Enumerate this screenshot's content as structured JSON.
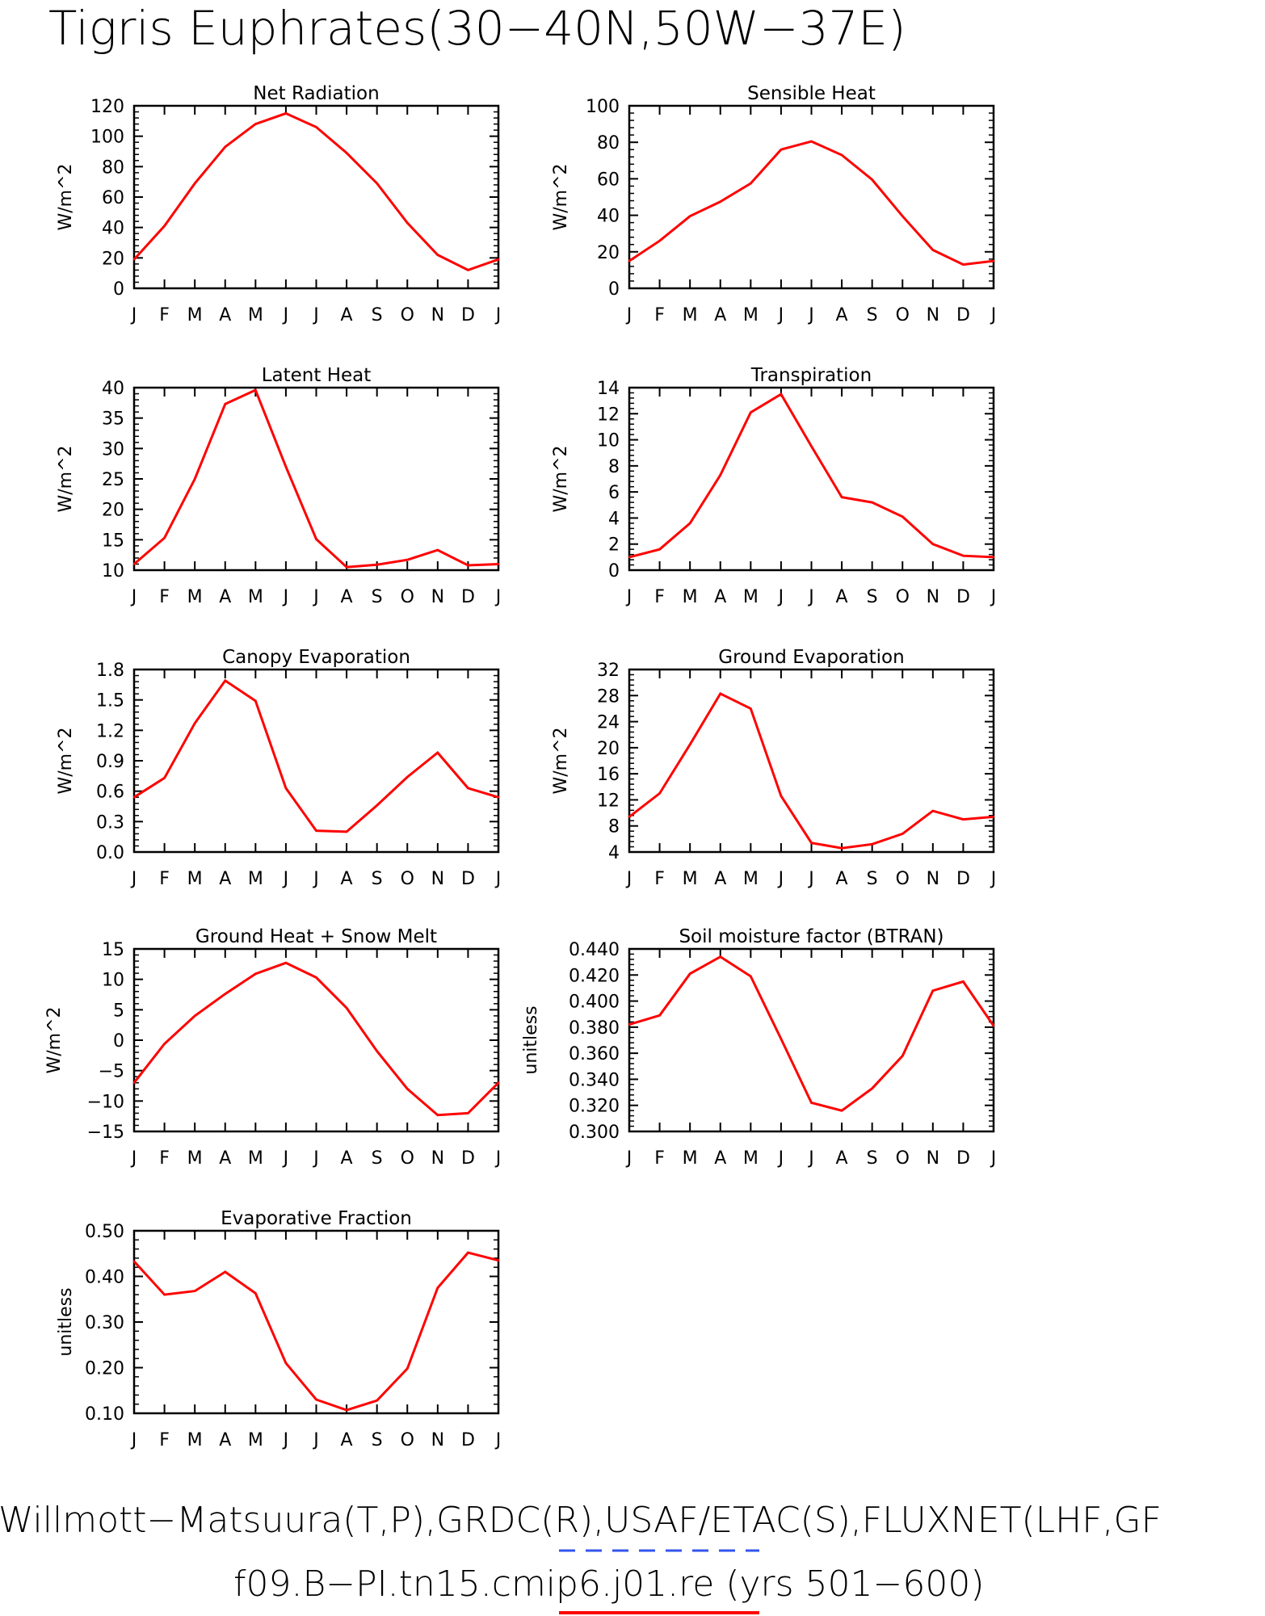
{
  "figure": {
    "title": "Tigris Euphrates(30−40N,50W−37E)",
    "footer_line1": "Willmott−Matsuura(T,P),GRDC(R),USAF/ETAC(S),FLUXNET(LHF,GF",
    "footer_line2": "f09.B−PI.tn15.cmip6.j01.re (yrs 501−600)",
    "line_color": "#ff0000",
    "obs_dash_color": "#3355ee"
  },
  "chart_data": [
    {
      "type": "line",
      "title": "Net Radiation",
      "ylabel": "W/m^2",
      "categories": [
        "J",
        "F",
        "M",
        "A",
        "M",
        "J",
        "J",
        "A",
        "S",
        "O",
        "N",
        "D",
        "J"
      ],
      "ylim": [
        0,
        120
      ],
      "yticks": [
        0,
        20,
        40,
        60,
        80,
        100,
        120
      ],
      "ytick_labels": [
        "0",
        "20",
        "40",
        "60",
        "80",
        "100",
        "120"
      ],
      "values": [
        19,
        41,
        69,
        93,
        108,
        115,
        106,
        89,
        69,
        43,
        22,
        12,
        19
      ]
    },
    {
      "type": "line",
      "title": "Sensible Heat",
      "ylabel": "W/m^2",
      "categories": [
        "J",
        "F",
        "M",
        "A",
        "M",
        "J",
        "J",
        "A",
        "S",
        "O",
        "N",
        "D",
        "J"
      ],
      "ylim": [
        0,
        100
      ],
      "yticks": [
        0,
        20,
        40,
        60,
        80,
        100
      ],
      "ytick_labels": [
        "0",
        "20",
        "40",
        "60",
        "80",
        "100"
      ],
      "values": [
        15,
        26,
        39.5,
        47.5,
        57.5,
        76,
        80.5,
        73,
        59.5,
        39.5,
        21,
        13,
        15
      ]
    },
    {
      "type": "line",
      "title": "Latent Heat",
      "ylabel": "W/m^2",
      "categories": [
        "J",
        "F",
        "M",
        "A",
        "M",
        "J",
        "J",
        "A",
        "S",
        "O",
        "N",
        "D",
        "J"
      ],
      "ylim": [
        10,
        40
      ],
      "yticks": [
        10,
        15,
        20,
        25,
        30,
        35,
        40
      ],
      "ytick_labels": [
        "10",
        "15",
        "20",
        "25",
        "30",
        "35",
        "40"
      ],
      "values": [
        11,
        15.3,
        25,
        37.3,
        39.6,
        27,
        15.1,
        10.5,
        10.9,
        11.7,
        13.3,
        10.8,
        11
      ]
    },
    {
      "type": "line",
      "title": "Transpiration",
      "ylabel": "W/m^2",
      "categories": [
        "J",
        "F",
        "M",
        "A",
        "M",
        "J",
        "J",
        "A",
        "S",
        "O",
        "N",
        "D",
        "J"
      ],
      "ylim": [
        0,
        14
      ],
      "yticks": [
        0,
        2,
        4,
        6,
        8,
        10,
        12,
        14
      ],
      "ytick_labels": [
        "0",
        "2",
        "4",
        "6",
        "8",
        "10",
        "12",
        "14"
      ],
      "values": [
        1,
        1.6,
        3.6,
        7.3,
        12.1,
        13.5,
        9.5,
        5.6,
        5.2,
        4.1,
        2,
        1.1,
        1
      ]
    },
    {
      "type": "line",
      "title": "Canopy Evaporation",
      "ylabel": "W/m^2",
      "categories": [
        "J",
        "F",
        "M",
        "A",
        "M",
        "J",
        "J",
        "A",
        "S",
        "O",
        "N",
        "D",
        "J"
      ],
      "ylim": [
        0,
        1.8
      ],
      "yticks": [
        0,
        0.3,
        0.6,
        0.9,
        1.2,
        1.5,
        1.8
      ],
      "ytick_labels": [
        "0.0",
        "0.3",
        "0.6",
        "0.9",
        "1.2",
        "1.5",
        "1.8"
      ],
      "values": [
        0.54,
        0.73,
        1.27,
        1.69,
        1.49,
        0.63,
        0.21,
        0.2,
        0.46,
        0.74,
        0.98,
        0.63,
        0.54
      ]
    },
    {
      "type": "line",
      "title": "Ground Evaporation",
      "ylabel": "W/m^2",
      "categories": [
        "J",
        "F",
        "M",
        "A",
        "M",
        "J",
        "J",
        "A",
        "S",
        "O",
        "N",
        "D",
        "J"
      ],
      "ylim": [
        4,
        32
      ],
      "yticks": [
        4,
        8,
        12,
        16,
        20,
        24,
        28,
        32
      ],
      "ytick_labels": [
        "4",
        "8",
        "12",
        "16",
        "20",
        "24",
        "28",
        "32"
      ],
      "values": [
        9.4,
        13,
        20.5,
        28.3,
        26,
        12.6,
        5.4,
        4.6,
        5.2,
        6.8,
        10.3,
        9,
        9.4
      ]
    },
    {
      "type": "line",
      "title": "Ground Heat + Snow Melt",
      "ylabel": "W/m^2",
      "categories": [
        "J",
        "F",
        "M",
        "A",
        "M",
        "J",
        "J",
        "A",
        "S",
        "O",
        "N",
        "D",
        "J"
      ],
      "ylim": [
        -15,
        15
      ],
      "yticks": [
        -15,
        -10,
        -5,
        0,
        5,
        10,
        15
      ],
      "ytick_labels": [
        "−15",
        "−10",
        "−5",
        "0",
        "5",
        "10",
        "15"
      ],
      "values": [
        -7,
        -0.6,
        4,
        7.6,
        10.9,
        12.7,
        10.3,
        5.3,
        -1.8,
        -8,
        -12.3,
        -12,
        -7
      ]
    },
    {
      "type": "line",
      "title": "Soil moisture factor (BTRAN)",
      "ylabel": "unitless",
      "categories": [
        "J",
        "F",
        "M",
        "A",
        "M",
        "J",
        "J",
        "A",
        "S",
        "O",
        "N",
        "D",
        "J"
      ],
      "ylim": [
        0.3,
        0.44
      ],
      "yticks": [
        0.3,
        0.32,
        0.34,
        0.36,
        0.38,
        0.4,
        0.42,
        0.44
      ],
      "ytick_labels": [
        "0.300",
        "0.320",
        "0.340",
        "0.360",
        "0.380",
        "0.400",
        "0.420",
        "0.440"
      ],
      "values": [
        0.382,
        0.389,
        0.421,
        0.434,
        0.419,
        0.371,
        0.322,
        0.316,
        0.333,
        0.358,
        0.408,
        0.415,
        0.381
      ]
    },
    {
      "type": "line",
      "title": "Evaporative Fraction",
      "ylabel": "unitless",
      "categories": [
        "J",
        "F",
        "M",
        "A",
        "M",
        "J",
        "J",
        "A",
        "S",
        "O",
        "N",
        "D",
        "J"
      ],
      "ylim": [
        0.1,
        0.5
      ],
      "yticks": [
        0.1,
        0.2,
        0.3,
        0.4,
        0.5
      ],
      "ytick_labels": [
        "0.10",
        "0.20",
        "0.30",
        "0.40",
        "0.50"
      ],
      "values": [
        0.433,
        0.36,
        0.368,
        0.41,
        0.363,
        0.21,
        0.13,
        0.107,
        0.128,
        0.198,
        0.375,
        0.452,
        0.435
      ]
    }
  ]
}
